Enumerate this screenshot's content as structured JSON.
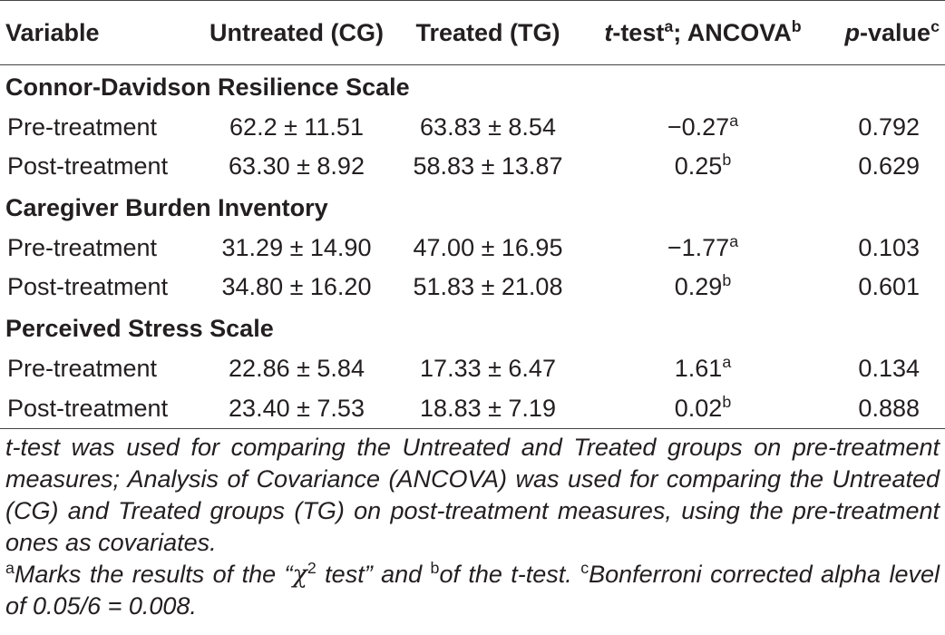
{
  "table": {
    "headers": {
      "variable": "Variable",
      "untreated": "Untreated (CG)",
      "treated": "Treated (TG)",
      "test_italic": "t",
      "test_rest": "-test",
      "test_sup1": "a",
      "test_mid": "; ANCOVA",
      "test_sup2": "b",
      "p_italic": "p",
      "p_rest": "-value",
      "p_sup": "c"
    },
    "sections": [
      {
        "title": "Connor-Davidson Resilience Scale",
        "rows": [
          {
            "label": "Pre-treatment",
            "cg": "62.2 ± 11.51",
            "tg": "63.83 ± 8.54",
            "stat": "−0.27",
            "stat_sup": "a",
            "p": "0.792"
          },
          {
            "label": "Post-treatment",
            "cg": "63.30 ± 8.92",
            "tg": "58.83 ± 13.87",
            "stat": "0.25",
            "stat_sup": "b",
            "p": "0.629"
          }
        ]
      },
      {
        "title": "Caregiver Burden Inventory",
        "rows": [
          {
            "label": "Pre-treatment",
            "cg": "31.29 ± 14.90",
            "tg": "47.00 ± 16.95",
            "stat": "−1.77",
            "stat_sup": "a",
            "p": "0.103"
          },
          {
            "label": "Post-treatment",
            "cg": "34.80 ± 16.20",
            "tg": "51.83 ± 21.08",
            "stat": "0.29",
            "stat_sup": "b",
            "p": "0.601"
          }
        ]
      },
      {
        "title": "Perceived Stress Scale",
        "rows": [
          {
            "label": "Pre-treatment",
            "cg": "22.86 ± 5.84",
            "tg": "17.33 ± 6.47",
            "stat": "1.61",
            "stat_sup": "a",
            "p": "0.134"
          },
          {
            "label": "Post-treatment",
            "cg": "23.40 ± 7.53",
            "tg": "18.83 ± 7.19",
            "stat": "0.02",
            "stat_sup": "b",
            "p": "0.888"
          }
        ]
      }
    ]
  },
  "notes": {
    "paragraph1": "t-test was used for comparing the Untreated and Treated groups on pre-treatment measures; Analysis of Covariance (ANCOVA) was used for comparing the Untreated (CG) and Treated groups (TG) on post-treatment measures, using the pre-treatment ones as covariates.",
    "fn_a_mark": "a",
    "fn_a_text_1": "Marks the results of the “",
    "fn_a_chi": "χ",
    "fn_a_chi_sup": "2",
    "fn_a_text_2": " test” and ",
    "fn_b_mark": "b",
    "fn_b_text": "of the t-test. ",
    "fn_c_mark": "c",
    "fn_c_text": "Bonferroni corrected alpha level of 0.05/6 = 0.008."
  }
}
